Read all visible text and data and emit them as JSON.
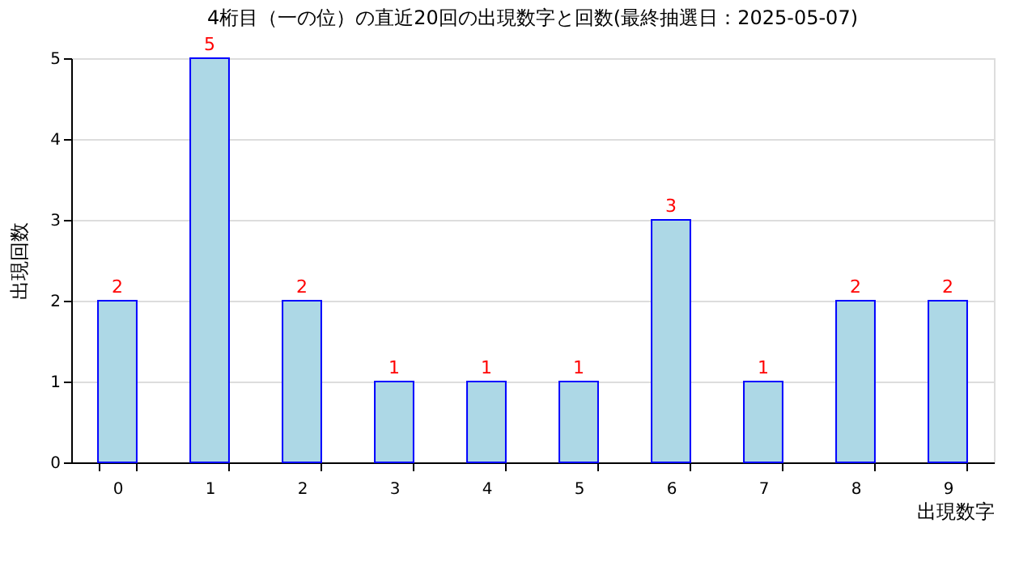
{
  "chart_data": {
    "type": "bar",
    "title": "4桁目（一の位）の直近20回の出現数字と回数(最終抽選日：2025-05-07)",
    "xlabel": "出現数字",
    "ylabel": "出現回数",
    "categories": [
      "0",
      "1",
      "2",
      "3",
      "4",
      "5",
      "6",
      "7",
      "8",
      "9"
    ],
    "values": [
      2,
      5,
      2,
      1,
      1,
      1,
      3,
      1,
      2,
      2
    ],
    "color": "#add8e6",
    "ylim": [
      0,
      5
    ],
    "yticks": [
      0,
      1,
      2,
      3,
      4,
      5
    ],
    "grid": "y",
    "data_labels": true
  }
}
